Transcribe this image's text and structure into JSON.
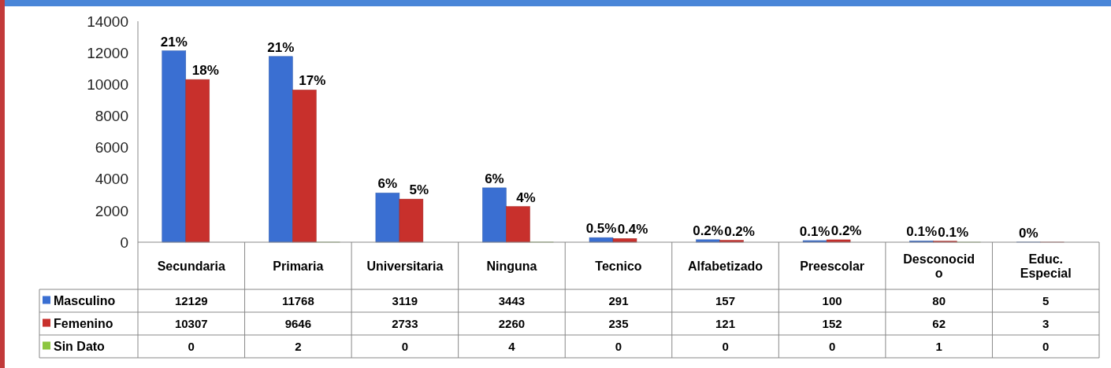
{
  "chart_data": {
    "type": "bar",
    "categories": [
      "Secundaria",
      "Primaria",
      "Universitaria",
      "Ninguna",
      "Tecnico",
      "Alfabetizado",
      "Preescolar",
      "Desconocid o",
      "Educ. Especial"
    ],
    "series": [
      {
        "name": "Masculino",
        "color": "#3a6fd2",
        "values": [
          12129,
          11768,
          3119,
          3443,
          291,
          157,
          100,
          80,
          5
        ]
      },
      {
        "name": "Femenino",
        "color": "#c8302c",
        "values": [
          10307,
          9646,
          2733,
          2260,
          235,
          121,
          152,
          62,
          3
        ]
      },
      {
        "name": "Sin Dato",
        "color": "#8cc63f",
        "values": [
          0,
          2,
          0,
          4,
          0,
          0,
          0,
          1,
          0
        ]
      }
    ],
    "annotations": [
      "21%",
      "18%",
      "21%",
      "17%",
      "6%",
      "5%",
      "6%",
      "4%",
      "0.5%",
      "0.4%",
      "0.2%",
      "0.2%",
      "0.1%",
      "0.2%",
      "0.1%",
      "0.1%",
      "0%"
    ],
    "ylim": [
      0,
      14000
    ],
    "yticks": [
      0,
      2000,
      4000,
      6000,
      8000,
      10000,
      12000,
      14000
    ],
    "data_labels": true,
    "legend": "bottom left"
  }
}
